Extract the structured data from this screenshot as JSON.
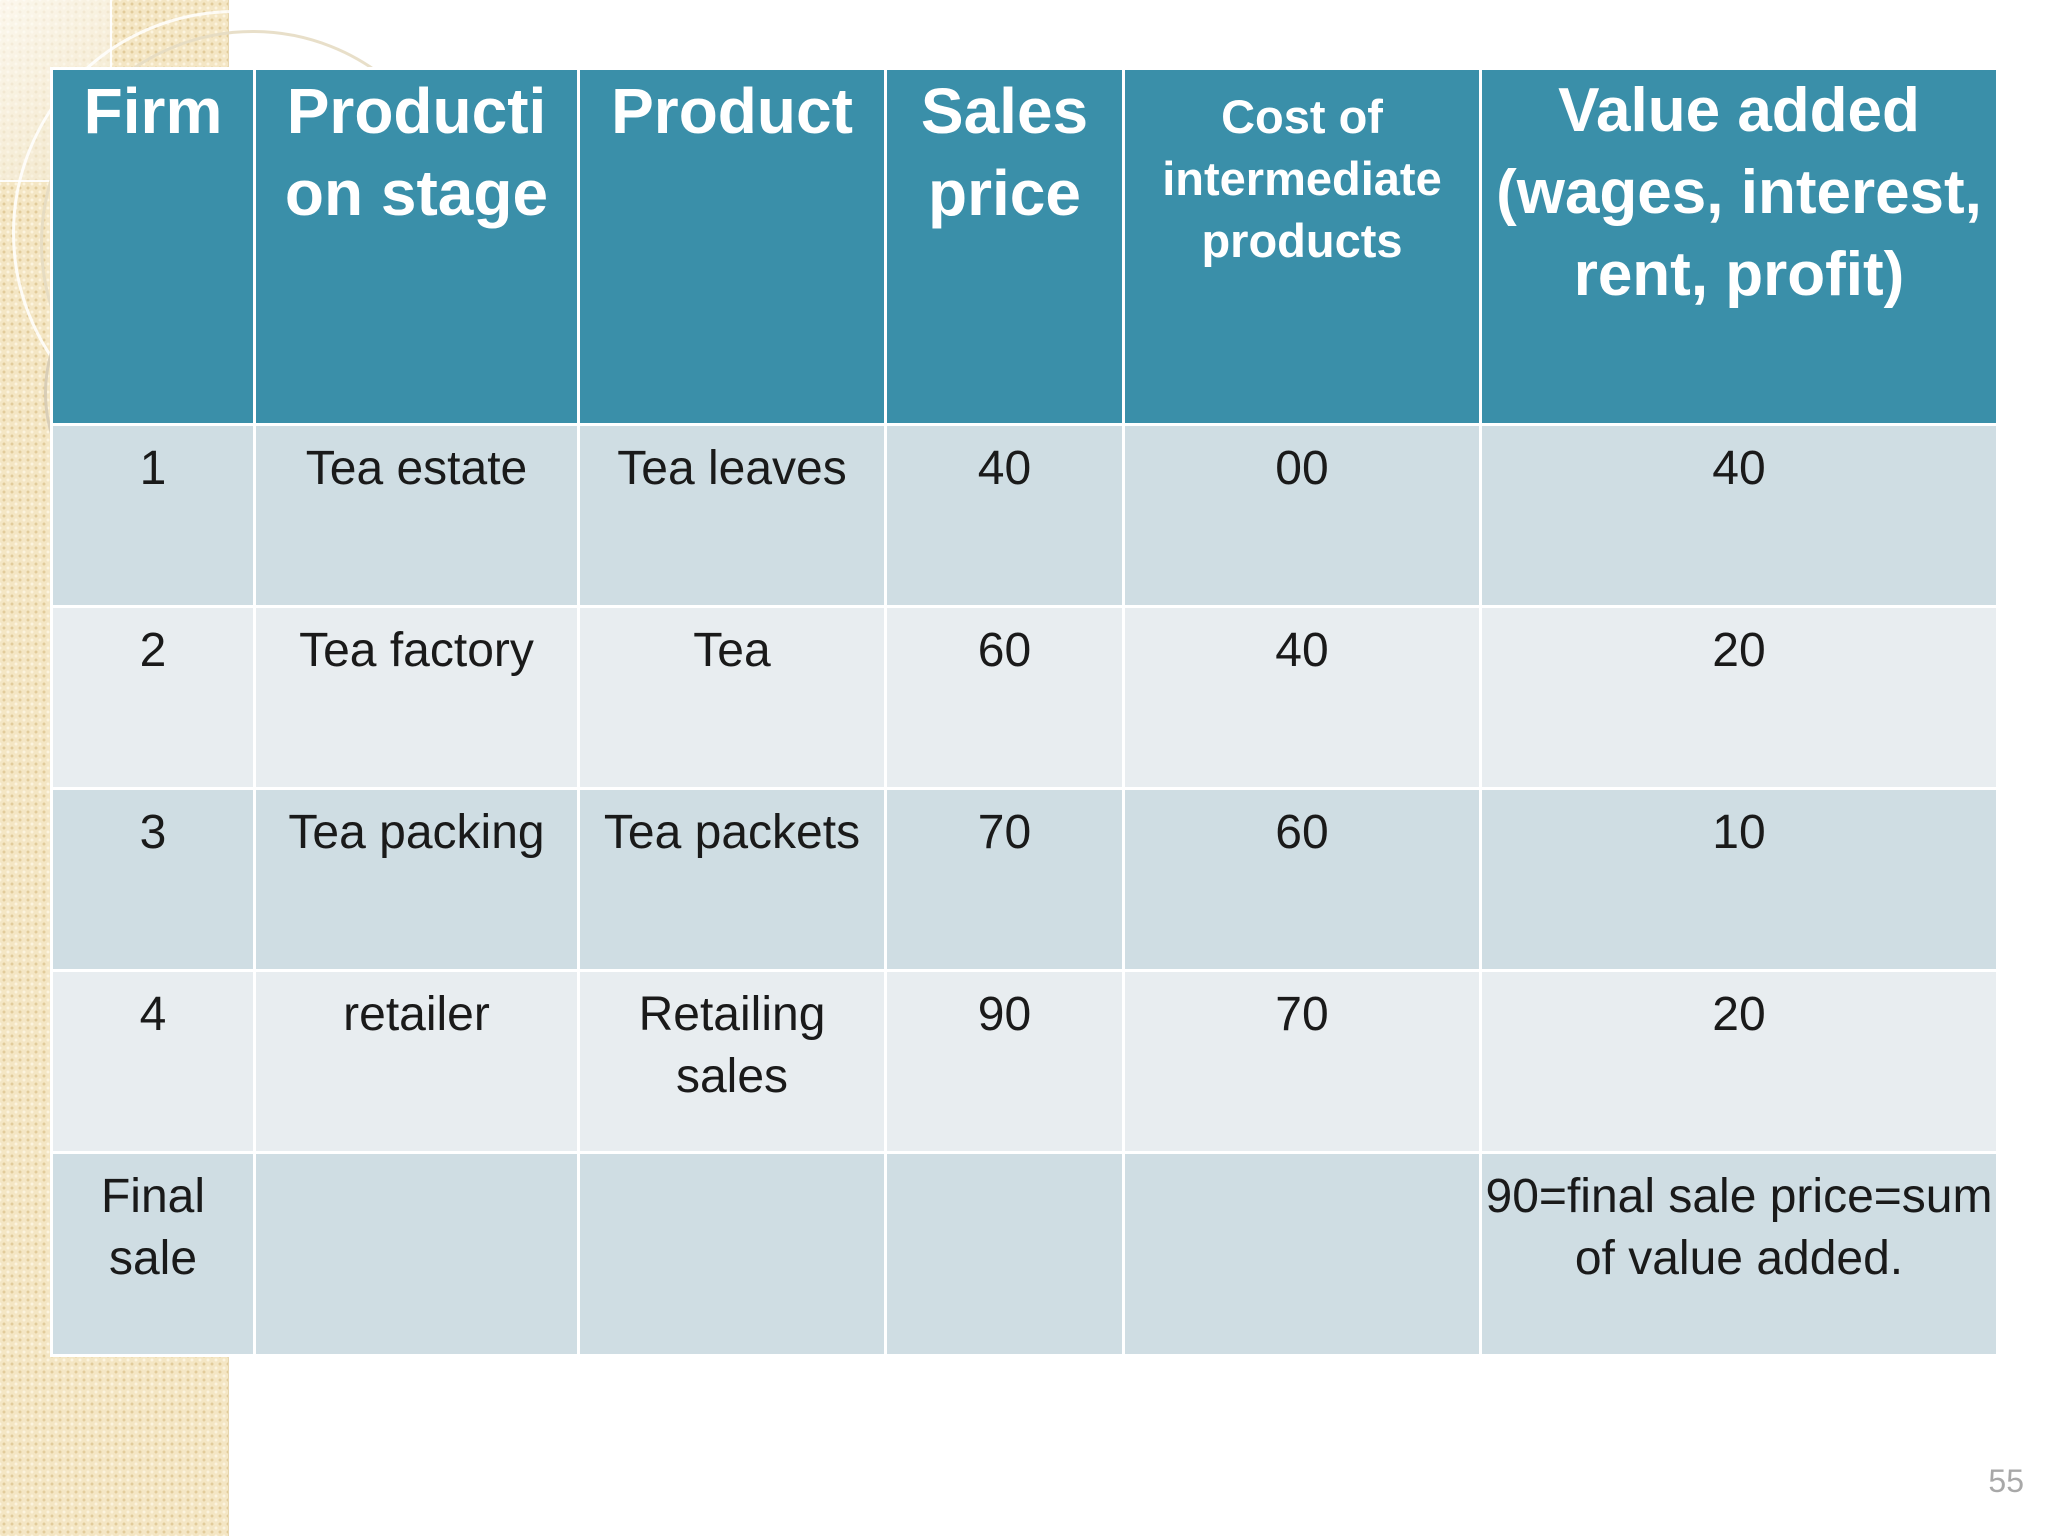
{
  "table": {
    "columns": [
      "Firm",
      "Producti on stage",
      "Product",
      "Sales price",
      "Cost of intermediate products",
      "Value added (wages, interest, rent, profit)"
    ],
    "rows": [
      [
        "1",
        "Tea estate",
        "Tea leaves",
        "40",
        "00",
        "40"
      ],
      [
        "2",
        "Tea factory",
        "Tea",
        "60",
        "40",
        "20"
      ],
      [
        "3",
        "Tea packing",
        "Tea packets",
        "70",
        "60",
        "10"
      ],
      [
        "4",
        "retailer",
        "Retailing sales",
        "90",
        "70",
        "20"
      ],
      [
        "Final sale",
        "",
        "",
        "",
        "",
        "90=final sale price=sum of value added."
      ]
    ]
  },
  "slide": {
    "number": "55"
  },
  "colors": {
    "header_bg": "#3a8fa9",
    "row_odd_bg": "#cfdde3",
    "row_even_bg": "#e8edf0"
  }
}
